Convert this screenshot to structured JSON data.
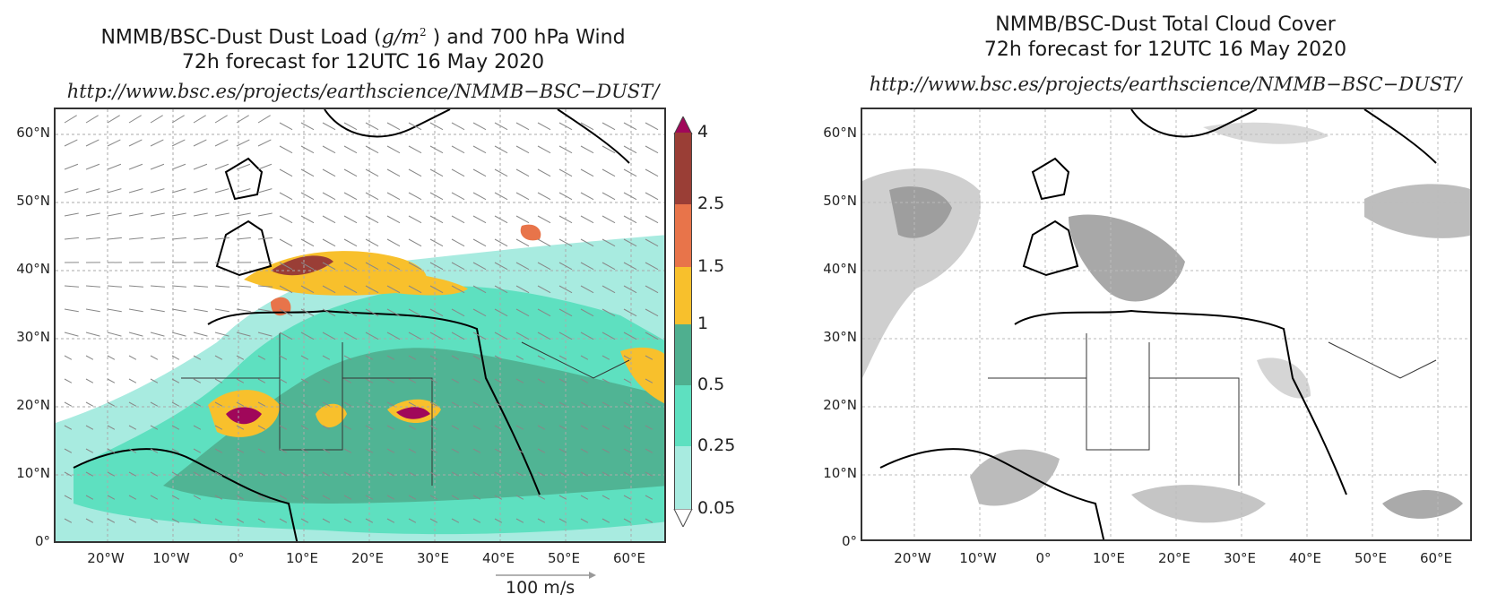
{
  "panels": [
    {
      "title_line1": "NMMB/BSC-Dust Dust Load (",
      "title_unit": "g/m",
      "title_sup": "2",
      "title_line1_end": " ) and 700 hPa Wind",
      "title_line2": "72h forecast for 12UTC 16 May 2020",
      "url": "http://www.bsc.es/projects/earthscience/NMMB−BSC−DUST/",
      "y_ticks": [
        "60°N",
        "50°N",
        "40°N",
        "30°N",
        "20°N",
        "10°N",
        "0°"
      ],
      "x_ticks": [
        "20°W",
        "10°W",
        "0°",
        "10°E",
        "20°E",
        "30°E",
        "40°E",
        "50°E",
        "60°E"
      ],
      "colorbar": {
        "labels": [
          "4",
          "2.5",
          "1.5",
          "1",
          "0.5",
          "0.25",
          "0.05"
        ],
        "colors": [
          "#a0075a",
          "#9a3e36",
          "#e8744a",
          "#f8c02c",
          "#4faf8f",
          "#5ee0c0",
          "#a8ebe0"
        ]
      },
      "wind_scale_label": "100 m/s"
    },
    {
      "title_line1": "NMMB/BSC-Dust Total Cloud Cover",
      "title_line2": "72h forecast for 12UTC 16 May 2020",
      "url": "http://www.bsc.es/projects/earthscience/NMMB−BSC−DUST/",
      "y_ticks": [
        "60°N",
        "50°N",
        "40°N",
        "30°N",
        "20°N",
        "10°N",
        "0°"
      ],
      "x_ticks": [
        "20°W",
        "10°W",
        "0°",
        "10°E",
        "20°E",
        "30°E",
        "40°E",
        "50°E",
        "60°E"
      ]
    }
  ]
}
